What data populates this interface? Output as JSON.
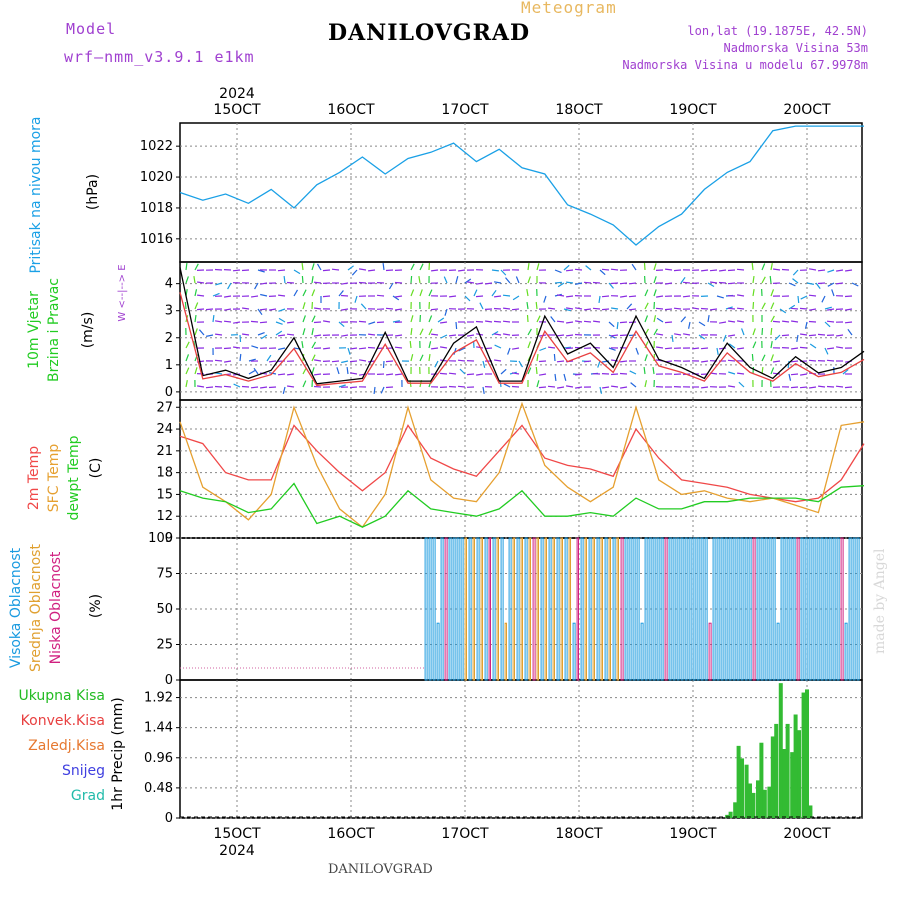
{
  "header": {
    "model_label": "Model",
    "model_name": "wrf–nmm_v3.9.1  e1km",
    "app_title": "Meteogram",
    "station": "DANILOVGRAD",
    "lonlat": "lon,lat (19.1875E, 42.5N)",
    "elevation": "Nadmorska Visina 53m",
    "model_elevation": "Nadmorska Visina u modelu 67.9978m",
    "footer_station": "DANILOVGRAD",
    "watermark": "made by Angel"
  },
  "colors": {
    "pressure": "#1aa0e6",
    "temp2m": "#f04848",
    "sfc": "#e6a030",
    "dew": "#22cc22",
    "cloud_high": "#1a9be0",
    "cloud_mid": "#e0a030",
    "cloud_low": "#d02080",
    "precip": "#33bb33",
    "wind_purple": "#8a2be2",
    "grid": "#888888"
  },
  "chart_data": [
    {
      "type": "line",
      "panel": "pressure",
      "y_labels": [
        "Pritisak na nivou mora",
        "(hPa)"
      ],
      "ylim": [
        1014.5,
        1023.5
      ],
      "yticks": [
        "1016",
        "1018",
        "1020",
        "1022"
      ],
      "x_top": [
        "15OCT",
        "16OCT",
        "17OCT",
        "18OCT",
        "19OCT",
        "20OCT"
      ],
      "x_top_year": "2024",
      "series": [
        {
          "x": [
            14.5,
            14.7,
            14.9,
            15.1,
            15.3,
            15.5,
            15.7,
            15.9,
            16.1,
            16.3,
            16.5,
            16.7,
            16.9,
            17.1,
            17.3,
            17.5,
            17.7,
            17.9,
            18.1,
            18.3,
            18.5,
            18.7,
            18.9,
            19.1,
            19.3,
            19.5,
            19.7,
            19.9,
            20.1,
            20.3,
            20.5
          ],
          "values": [
            1019.0,
            1018.5,
            1018.9,
            1018.3,
            1019.2,
            1018.0,
            1019.5,
            1020.3,
            1021.3,
            1020.2,
            1021.2,
            1021.6,
            1022.2,
            1021.0,
            1021.8,
            1020.6,
            1020.2,
            1018.2,
            1017.6,
            1016.9,
            1015.6,
            1016.8,
            1017.6,
            1019.2,
            1020.3,
            1021.0,
            1023.0,
            1023.3,
            1023.3,
            1023.3,
            1023.3
          ]
        }
      ]
    },
    {
      "type": "line",
      "panel": "wind",
      "y_labels": [
        "10m Vjetar",
        "Brzina i Pravac",
        "(m/s)"
      ],
      "compass": "W <--|--> E",
      "ylim": [
        -0.3,
        4.8
      ],
      "yticks": [
        "0",
        "1",
        "2",
        "3",
        "4"
      ],
      "series": [
        {
          "x": [
            14.5,
            14.7,
            14.9,
            15.1,
            15.3,
            15.5,
            15.7,
            15.9,
            16.1,
            16.3,
            16.5,
            16.7,
            16.9,
            17.1,
            17.3,
            17.5,
            17.7,
            17.9,
            18.1,
            18.3,
            18.5,
            18.7,
            18.9,
            19.1,
            19.3,
            19.5,
            19.7,
            19.9,
            20.1,
            20.3,
            20.5
          ],
          "values": [
            4.6,
            0.6,
            0.8,
            0.5,
            0.8,
            2.0,
            0.3,
            0.4,
            0.5,
            2.2,
            0.4,
            0.4,
            1.8,
            2.4,
            0.4,
            0.4,
            2.8,
            1.4,
            1.8,
            0.9,
            2.8,
            1.2,
            0.9,
            0.5,
            1.8,
            0.9,
            0.5,
            1.3,
            0.7,
            0.9,
            1.5
          ]
        }
      ]
    },
    {
      "type": "line",
      "panel": "temperature",
      "y_labels": [
        "2m Temp",
        "SFC Temp",
        "dewpt Temp",
        "(C)"
      ],
      "ylim": [
        9,
        28
      ],
      "yticks": [
        "9",
        "12",
        "15",
        "18",
        "21",
        "24",
        "27"
      ],
      "series": [
        {
          "name": "2m Temp",
          "x": [
            14.5,
            14.7,
            14.9,
            15.1,
            15.3,
            15.5,
            15.7,
            15.9,
            16.1,
            16.3,
            16.5,
            16.7,
            16.9,
            17.1,
            17.3,
            17.5,
            17.7,
            17.9,
            18.1,
            18.3,
            18.5,
            18.7,
            18.9,
            19.1,
            19.3,
            19.5,
            19.7,
            19.9,
            20.1,
            20.3,
            20.5
          ],
          "values": [
            23,
            22,
            18,
            17,
            17,
            24.5,
            21,
            18,
            15.5,
            18,
            24.5,
            20,
            18.5,
            17.5,
            21,
            24.5,
            20,
            19,
            18.5,
            17.5,
            24,
            20,
            17,
            16.5,
            16,
            15,
            14.5,
            14,
            14.5,
            17,
            22
          ]
        },
        {
          "name": "SFC Temp",
          "x": [
            14.5,
            14.7,
            14.9,
            15.1,
            15.3,
            15.5,
            15.7,
            15.9,
            16.1,
            16.3,
            16.5,
            16.7,
            16.9,
            17.1,
            17.3,
            17.5,
            17.7,
            17.9,
            18.1,
            18.3,
            18.5,
            18.7,
            18.9,
            19.1,
            19.3,
            19.5,
            19.7,
            19.9,
            20.1,
            20.3,
            20.5
          ],
          "values": [
            25,
            16,
            14,
            11.5,
            15,
            27,
            19,
            13,
            10.5,
            15,
            27,
            17,
            14.5,
            14,
            18,
            27.5,
            19,
            16,
            14,
            16,
            27,
            17,
            15,
            15.5,
            14.5,
            14,
            14.5,
            13.5,
            12.5,
            24.5,
            25
          ]
        },
        {
          "name": "dewpt Temp",
          "x": [
            14.5,
            14.7,
            14.9,
            15.1,
            15.3,
            15.5,
            15.7,
            15.9,
            16.1,
            16.3,
            16.5,
            16.7,
            16.9,
            17.1,
            17.3,
            17.5,
            17.7,
            17.9,
            18.1,
            18.3,
            18.5,
            18.7,
            18.9,
            19.1,
            19.3,
            19.5,
            19.7,
            19.9,
            20.1,
            20.3,
            20.5
          ],
          "values": [
            15.5,
            14.5,
            14,
            12.5,
            13,
            16.5,
            11,
            12,
            10.5,
            12,
            15.5,
            13,
            12.5,
            12,
            13,
            15.5,
            12,
            12,
            12.5,
            12,
            14.5,
            13,
            13,
            14,
            14,
            14.5,
            14.5,
            14.5,
            14,
            16,
            16.2
          ]
        }
      ]
    },
    {
      "type": "bar",
      "panel": "clouds",
      "y_labels": [
        "Visoka Oblacnost",
        "Srednja Oblacnost",
        "Niska Oblacnost",
        "(%)"
      ],
      "ylim": [
        0,
        100
      ],
      "yticks": [
        "0",
        "25",
        "50",
        "75",
        "100"
      ],
      "series": [
        {
          "name": "Visoka Oblacnost",
          "note": "mostly 100 after 16.65"
        },
        {
          "name": "Srednja Oblacnost",
          "note": "mostly 100 between 17.0 and 18.3"
        },
        {
          "name": "Niska Oblacnost",
          "note": "occasional"
        }
      ],
      "cloud_start": 16.65
    },
    {
      "type": "bar",
      "panel": "precip",
      "y_labels": [
        "Ukupna Kisa",
        "Konvek.Kisa",
        "Zaledj.Kisa",
        "Snijeg",
        "Grad",
        "1hr Precip (mm)"
      ],
      "ylim": [
        0,
        2.2
      ],
      "yticks": [
        "0",
        "0.48",
        "0.96",
        "1.44",
        "1.92"
      ],
      "x_bottom": [
        "15OCT",
        "16OCT",
        "17OCT",
        "18OCT",
        "19OCT",
        "20OCT"
      ],
      "x_bottom_year": "2024",
      "series": [
        {
          "name": "Ukupna Kisa",
          "x": [
            19.3,
            19.33,
            19.37,
            19.4,
            19.43,
            19.47,
            19.5,
            19.53,
            19.57,
            19.6,
            19.63,
            19.67,
            19.7,
            19.73,
            19.77,
            19.8,
            19.83,
            19.87,
            19.9,
            19.93,
            19.97,
            20.0,
            20.03
          ],
          "values": [
            0.05,
            0.1,
            0.25,
            1.15,
            0.95,
            0.85,
            0.55,
            0.4,
            0.6,
            1.2,
            0.45,
            0.5,
            1.3,
            1.5,
            2.15,
            1.1,
            1.5,
            1.05,
            1.65,
            1.4,
            2.0,
            2.05,
            0.2
          ]
        }
      ]
    }
  ]
}
